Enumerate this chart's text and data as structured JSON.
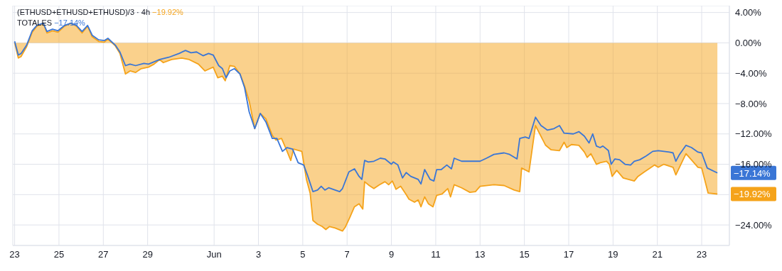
{
  "chart_data": {
    "type": "area",
    "series": [
      {
        "name": "(ETHUSD+ETHUSD+ETHUSD)/3 · 4h",
        "color": "#f5a31a",
        "x": [
          "--05-23T00:00",
          "--05-23T04:00",
          "--05-23T07:00",
          "--05-23T13:00",
          "--05-23T19:00",
          "--05-24T00:00",
          "--05-24T07:00",
          "--05-24T11:00",
          "--05-24T17:00",
          "--05-24T23:00",
          "--05-25T06:00",
          "--05-25T13:00",
          "--05-25T19:00",
          "--05-26T01:00",
          "--05-26T07:00",
          "--05-26T12:00",
          "--05-26T19:00",
          "--05-27T01:00",
          "--05-27T05:00",
          "--05-27T13:00",
          "--05-27T18:00",
          "--05-28T00:00",
          "--05-28T05:00",
          "--05-28T11:00",
          "--05-28T17:00",
          "--05-29T01:00",
          "--05-29T07:00",
          "--05-29T13:00",
          "--05-29T17:00",
          "--05-30T02:00",
          "--05-30T13:00",
          "--05-30T21:00",
          "--05-31T07:00",
          "--05-31T14:00",
          "--05-31T23:00",
          "--06-01T04:00",
          "--06-01T09:00",
          "--06-01T12:00",
          "--06-01T17:00",
          "--06-01T22:00",
          "--06-02T04:00",
          "--06-02T09:00",
          "--06-02T14:00",
          "--06-02T20:00",
          "--06-03T02:00",
          "--06-03T08:00",
          "--06-03T15:00",
          "--06-03T19:00",
          "--06-04T01:00",
          "--06-04T06:00",
          "--06-04T11:00",
          "--06-04T14:00",
          "--06-04T23:00",
          "--06-05T04:00",
          "--06-05T08:00",
          "--06-05T11:00",
          "--06-05T16:00",
          "--06-05T21:00",
          "--06-06T01:00",
          "--06-06T05:00",
          "--06-06T11:00",
          "--06-06T19:00",
          "--06-06T22:00",
          "--06-07T03:00",
          "--06-07T08:00",
          "--06-07T13:00",
          "--06-07T17:00",
          "--06-07T19:00",
          "--06-08T00:00",
          "--06-08T05:00",
          "--06-08T11:00",
          "--06-08T17:00",
          "--06-08T21:00",
          "--06-09T01:00",
          "--06-09T05:00",
          "--06-09T10:00",
          "--06-09T16:00",
          "--06-09T19:00",
          "--06-10T01:00",
          "--06-10T05:00",
          "--06-10T08:00",
          "--06-10T12:00",
          "--06-10T16:00",
          "--06-10T21:00",
          "--06-11T01:00",
          "--06-11T07:00",
          "--06-11T13:00",
          "--06-11T16:00",
          "--06-11T20:00",
          "--06-12T04:00",
          "--06-12T13:00",
          "--06-12T19:00",
          "--06-13T00:00",
          "--06-13T15:00",
          "--06-14T02:00",
          "--06-14T13:00",
          "--06-14T19:00",
          "--06-14T21:00",
          "--06-15T05:00",
          "--06-15T12:00",
          "--06-15T23:00",
          "--06-16T05:00",
          "--06-16T14:00",
          "--06-16T19:00",
          "--06-16T22:00",
          "--06-17T03:00",
          "--06-17T11:00",
          "--06-17T17:00",
          "--06-17T20:00",
          "--06-18T00:00",
          "--06-18T06:00",
          "--06-18T10:00",
          "--06-18T17:00",
          "--06-18T20:00",
          "--06-18T23:00",
          "--06-19T04:00",
          "--06-19T11:00",
          "--06-19T23:00",
          "--06-20T03:00",
          "--06-20T10:00",
          "--06-20T16:00",
          "--06-20T21:00",
          "--06-21T01:00",
          "--06-21T07:00",
          "--06-21T17:00",
          "--06-21T20:00",
          "--06-22T07:00",
          "--06-22T20:00",
          "--06-23T00:00",
          "--06-23T07:00",
          "--06-23T17:00"
        ],
        "values": [
          0,
          -2.0,
          -1.8,
          -0.5,
          1.4,
          2.2,
          2.6,
          1.3,
          1.6,
          1.4,
          2.2,
          2.6,
          2.2,
          1.3,
          2.2,
          0.8,
          0.2,
          0.1,
          0.5,
          -0.4,
          -1.4,
          -4.1,
          -3.7,
          -3.9,
          -3.4,
          -3.2,
          -2.8,
          -2.2,
          -2.6,
          -2.2,
          -2.0,
          -2.2,
          -2.8,
          -3.7,
          -3.2,
          -4.6,
          -4.4,
          -5.0,
          -3.0,
          -3.1,
          -4.1,
          -5.7,
          -7.7,
          -11.3,
          -9.3,
          -10.0,
          -12.2,
          -12.8,
          -12.6,
          -14.0,
          -15.5,
          -14.0,
          -14.3,
          -18.0,
          -19.8,
          -23.4,
          -23.9,
          -24.2,
          -24.6,
          -24.2,
          -24.4,
          -24.8,
          -24.3,
          -23.0,
          -21.6,
          -21.2,
          -21.9,
          -18.3,
          -18.8,
          -19.2,
          -18.7,
          -18.3,
          -18.7,
          -18.2,
          -19.3,
          -18.9,
          -20.0,
          -20.6,
          -21.0,
          -20.7,
          -21.6,
          -20.3,
          -21.2,
          -21.6,
          -20.1,
          -19.9,
          -19.2,
          -20.3,
          -18.7,
          -19.1,
          -19.7,
          -19.6,
          -18.9,
          -18.7,
          -18.8,
          -19.4,
          -19.6,
          -16.5,
          -17.0,
          -10.9,
          -13.5,
          -14.1,
          -14.2,
          -13.1,
          -13.8,
          -13.4,
          -13.5,
          -14.4,
          -15.1,
          -14.6,
          -16.0,
          -15.8,
          -15.6,
          -16.0,
          -17.6,
          -16.8,
          -17.8,
          -18.2,
          -17.6,
          -17.0,
          -16.5,
          -16.1,
          -16.4,
          -16.0,
          -16.4,
          -17.4,
          -14.6,
          -16.4,
          -16.5,
          -19.8,
          -19.92
        ]
      },
      {
        "name": "TOTALES",
        "type": "line",
        "color": "#3a76d6",
        "x": [
          "--05-23T00:00",
          "--05-23T04:00",
          "--05-23T07:00",
          "--05-23T13:00",
          "--05-23T19:00",
          "--05-24T00:00",
          "--05-24T07:00",
          "--05-24T11:00",
          "--05-24T17:00",
          "--05-24T23:00",
          "--05-25T06:00",
          "--05-25T13:00",
          "--05-25T19:00",
          "--05-26T01:00",
          "--05-26T07:00",
          "--05-26T12:00",
          "--05-26T19:00",
          "--05-27T01:00",
          "--05-27T05:00",
          "--05-27T13:00",
          "--05-27T18:00",
          "--05-28T00:00",
          "--05-28T05:00",
          "--05-28T11:00",
          "--05-28T20:00",
          "--05-29T01:00",
          "--05-29T07:00",
          "--05-29T13:00",
          "--05-29T23:00",
          "--05-30T10:00",
          "--05-30T17:00",
          "--05-30T23:00",
          "--05-31T05:00",
          "--05-31T12:00",
          "--05-31T18:00",
          "--05-31T23:00",
          "--06-01T05:00",
          "--06-01T09:00",
          "--06-01T13:00",
          "--06-01T17:00",
          "--06-01T22:00",
          "--06-02T04:00",
          "--06-02T09:00",
          "--06-02T14:00",
          "--06-02T20:00",
          "--06-03T02:00",
          "--06-03T08:00",
          "--06-03T15:00",
          "--06-03T20:00",
          "--06-04T02:00",
          "--06-04T07:00",
          "--06-04T13:00",
          "--06-04T19:00",
          "--06-05T01:00",
          "--06-05T05:00",
          "--06-05T11:00",
          "--06-05T16:00",
          "--06-05T20:00",
          "--06-06T00:00",
          "--06-06T04:00",
          "--06-06T11:00",
          "--06-06T16:00",
          "--06-06T19:00",
          "--06-07T02:00",
          "--06-07T08:00",
          "--06-07T13:00",
          "--06-07T16:00",
          "--06-07T19:00",
          "--06-07T23:00",
          "--06-08T05:00",
          "--06-08T12:00",
          "--06-08T17:00",
          "--06-09T00:00",
          "--06-09T02:00",
          "--06-09T07:00",
          "--06-09T12:00",
          "--06-09T16:00",
          "--06-09T21:00",
          "--06-10T05:00",
          "--06-10T08:00",
          "--06-10T12:00",
          "--06-10T18:00",
          "--06-10T22:00",
          "--06-11T01:00",
          "--06-11T06:00",
          "--06-11T12:00",
          "--06-11T17:00",
          "--06-11T20:00",
          "--06-12T04:00",
          "--06-12T13:00",
          "--06-13T00:00",
          "--06-13T07:00",
          "--06-13T15:00",
          "--06-14T02:00",
          "--06-14T08:00",
          "--06-14T16:00",
          "--06-14T19:00",
          "--06-15T01:00",
          "--06-15T05:00",
          "--06-15T12:00",
          "--06-15T18:00",
          "--06-16T01:00",
          "--06-16T08:00",
          "--06-16T14:00",
          "--06-16T19:00",
          "--06-17T05:00",
          "--06-17T11:00",
          "--06-17T17:00",
          "--06-17T22:00",
          "--06-18T02:00",
          "--06-18T06:00",
          "--06-18T10:00",
          "--06-18T13:00",
          "--06-18T19:00",
          "--06-18T22:00",
          "--06-19T02:00",
          "--06-19T07:00",
          "--06-19T13:00",
          "--06-19T19:00",
          "--06-19T23:00",
          "--06-20T05:00",
          "--06-20T12:00",
          "--06-20T19:00",
          "--06-21T01:00",
          "--06-21T07:00",
          "--06-21T13:00",
          "--06-21T17:00",
          "--06-21T20:00",
          "--06-22T00:00",
          "--06-22T07:00",
          "--06-22T13:00",
          "--06-22T20:00",
          "--06-23T00:00",
          "--06-23T06:00",
          "--06-23T17:00"
        ],
        "values": [
          0.2,
          -1.6,
          -1.4,
          -0.3,
          1.6,
          2.3,
          2.6,
          1.5,
          1.8,
          1.6,
          2.3,
          2.6,
          2.3,
          1.5,
          2.3,
          1.0,
          0.4,
          0.3,
          0.6,
          -0.3,
          -1.2,
          -3.0,
          -2.8,
          -3.0,
          -2.7,
          -2.8,
          -2.5,
          -2.2,
          -1.9,
          -1.4,
          -1.0,
          -1.3,
          -1.2,
          -1.7,
          -1.4,
          -1.6,
          -3.0,
          -3.4,
          -4.6,
          -3.7,
          -3.4,
          -4.1,
          -5.9,
          -9.1,
          -11.3,
          -9.3,
          -10.4,
          -12.6,
          -12.6,
          -14.3,
          -13.8,
          -14.0,
          -15.8,
          -16.1,
          -17.4,
          -19.6,
          -19.4,
          -18.9,
          -19.4,
          -19.1,
          -19.4,
          -19.6,
          -19.2,
          -17.0,
          -16.6,
          -17.6,
          -18.0,
          -15.5,
          -15.7,
          -15.6,
          -15.2,
          -15.3,
          -16.0,
          -15.7,
          -16.1,
          -17.8,
          -17.1,
          -17.6,
          -18.0,
          -18.6,
          -16.7,
          -18.0,
          -18.2,
          -16.7,
          -16.7,
          -16.1,
          -16.6,
          -15.2,
          -15.6,
          -15.6,
          -15.6,
          -15.2,
          -14.7,
          -14.5,
          -14.7,
          -15.3,
          -12.6,
          -12.4,
          -12.6,
          -9.8,
          -10.9,
          -11.5,
          -11.3,
          -10.9,
          -11.9,
          -12.0,
          -11.7,
          -12.3,
          -13.2,
          -12.0,
          -13.6,
          -13.8,
          -13.6,
          -14.2,
          -16.0,
          -15.3,
          -15.4,
          -16.0,
          -16.1,
          -15.6,
          -15.4,
          -14.9,
          -14.3,
          -14.2,
          -14.3,
          -14.4,
          -14.5,
          -15.6,
          -14.7,
          -13.5,
          -13.8,
          -14.4,
          -14.5,
          -16.5,
          -17.14
        ]
      }
    ],
    "annotations": [
      {
        "text": "−19.92%",
        "x": "--06-23T17:00",
        "y": -19.92
      },
      {
        "text": "−17.14%",
        "x": "--06-23T17:00",
        "y": -17.14
      }
    ],
    "xlim": [
      "--05-22T22:00",
      "--06-24T06:00"
    ],
    "xticks": [
      {
        "value": "--05-23",
        "label": "23"
      },
      {
        "value": "--05-25",
        "label": "25"
      },
      {
        "value": "--05-27",
        "label": "27"
      },
      {
        "value": "--05-29",
        "label": "29"
      },
      {
        "value": "--06-01",
        "label": "Jun"
      },
      {
        "value": "--06-03",
        "label": "3"
      },
      {
        "value": "--06-05",
        "label": "5"
      },
      {
        "value": "--06-07",
        "label": "7"
      },
      {
        "value": "--06-09",
        "label": "9"
      },
      {
        "value": "--06-11",
        "label": "11"
      },
      {
        "value": "--06-13",
        "label": "13"
      },
      {
        "value": "--06-15",
        "label": "15"
      },
      {
        "value": "--06-17",
        "label": "17"
      },
      {
        "value": "--06-19",
        "label": "19"
      },
      {
        "value": "--06-21",
        "label": "21"
      },
      {
        "value": "--06-23",
        "label": "23"
      }
    ],
    "ylim": [
      -26.7,
      4.9
    ],
    "yticks": [
      {
        "value": 4,
        "label": "4.00%"
      },
      {
        "value": 0,
        "label": "0.00%"
      },
      {
        "value": -4,
        "label": "−4.00%"
      },
      {
        "value": -8,
        "label": "−8.00%"
      },
      {
        "value": -12,
        "label": "−12.00%"
      },
      {
        "value": -16,
        "label": "−16.00%"
      },
      {
        "value": -20,
        "label": null
      },
      {
        "value": -24,
        "label": "−24.00%"
      }
    ],
    "grid": true,
    "legend": "top left",
    "marker": "none"
  }
}
